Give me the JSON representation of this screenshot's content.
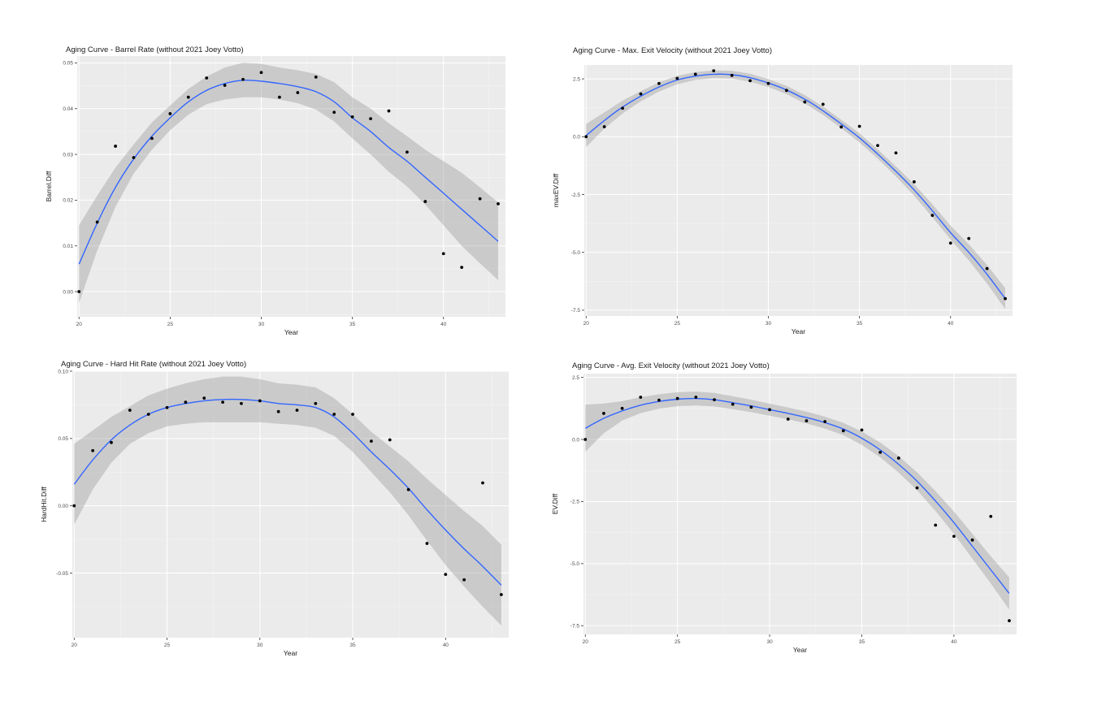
{
  "chart_data": [
    {
      "type": "scatter",
      "title": "Aging Curve - Barrel Rate (without 2021 Joey Votto)",
      "xlabel": "Year",
      "ylabel": "Barrel.Diff",
      "xlim": [
        19.9,
        43.4
      ],
      "ylim": [
        -0.0055,
        0.0515
      ],
      "xticks": [
        20,
        25,
        30,
        35,
        40
      ],
      "yticks": [
        0.0,
        0.01,
        0.02,
        0.03,
        0.04,
        0.05
      ],
      "ytick_labels": [
        "0.00",
        "0.01",
        "0.02",
        "0.03",
        "0.04",
        "0.05"
      ],
      "points": {
        "x": [
          20,
          21,
          22,
          23,
          24,
          25,
          26,
          27,
          28,
          29,
          30,
          31,
          32,
          33,
          34,
          35,
          36,
          37,
          38,
          39,
          40,
          41,
          42,
          43
        ],
        "y": [
          0.0,
          0.0152,
          0.0318,
          0.0293,
          0.0335,
          0.0389,
          0.0425,
          0.0467,
          0.0451,
          0.0464,
          0.0479,
          0.0425,
          0.0435,
          0.0469,
          0.0392,
          0.0382,
          0.0378,
          0.0395,
          0.0305,
          0.0197,
          0.0083,
          0.0053,
          0.0203,
          0.0192
        ]
      },
      "smooth": {
        "x": [
          20,
          21,
          22,
          23,
          24,
          25,
          26,
          27,
          28,
          29,
          30,
          31,
          32,
          33,
          34,
          35,
          36,
          37,
          38,
          39,
          40,
          41,
          42,
          43
        ],
        "y": [
          0.006,
          0.015,
          0.0228,
          0.029,
          0.034,
          0.038,
          0.0415,
          0.044,
          0.0455,
          0.0462,
          0.046,
          0.0455,
          0.0448,
          0.0437,
          0.0415,
          0.038,
          0.035,
          0.0315,
          0.0285,
          0.025,
          0.0215,
          0.018,
          0.0145,
          0.011
        ],
        "lower": [
          -0.0025,
          0.009,
          0.0185,
          0.0258,
          0.031,
          0.0353,
          0.0387,
          0.041,
          0.042,
          0.0425,
          0.0425,
          0.042,
          0.0412,
          0.0398,
          0.0372,
          0.0335,
          0.03,
          0.0262,
          0.023,
          0.019,
          0.0145,
          0.01,
          0.0062,
          0.0025
        ],
        "upper": [
          0.0145,
          0.021,
          0.0271,
          0.0322,
          0.037,
          0.0407,
          0.0443,
          0.047,
          0.049,
          0.05,
          0.0498,
          0.049,
          0.0484,
          0.0476,
          0.0458,
          0.0425,
          0.04,
          0.0368,
          0.034,
          0.031,
          0.0285,
          0.026,
          0.0228,
          0.0195
        ]
      }
    },
    {
      "type": "scatter",
      "title": "Aging Curve - Max. Exit Velocity (without 2021 Joey Votto)",
      "xlabel": "Year",
      "ylabel": "maxEV.Diff",
      "xlim": [
        19.9,
        43.4
      ],
      "ylim": [
        -7.75,
        3.1
      ],
      "xticks": [
        20,
        25,
        30,
        35,
        40
      ],
      "yticks": [
        -7.5,
        -5.0,
        -2.5,
        0.0,
        2.5
      ],
      "ytick_labels": [
        "-7.5",
        "-5.0",
        "-2.5",
        "0.0",
        "2.5"
      ],
      "points": {
        "x": [
          20,
          21,
          22,
          23,
          24,
          25,
          26,
          27,
          28,
          29,
          30,
          31,
          32,
          33,
          34,
          35,
          36,
          37,
          38,
          39,
          40,
          41,
          42,
          43
        ],
        "y": [
          0.0,
          0.43,
          1.23,
          1.85,
          2.3,
          2.52,
          2.7,
          2.85,
          2.65,
          2.42,
          2.3,
          2.0,
          1.5,
          1.4,
          0.42,
          0.45,
          -0.38,
          -0.7,
          -1.95,
          -3.4,
          -4.6,
          -4.4,
          -5.7,
          -7.0
        ]
      },
      "smooth": {
        "x": [
          20,
          21,
          22,
          23,
          24,
          25,
          26,
          27,
          28,
          29,
          30,
          31,
          32,
          33,
          34,
          35,
          36,
          37,
          38,
          39,
          40,
          41,
          42,
          43
        ],
        "y": [
          0.05,
          0.7,
          1.28,
          1.75,
          2.15,
          2.45,
          2.62,
          2.7,
          2.68,
          2.55,
          2.32,
          2.02,
          1.62,
          1.12,
          0.55,
          -0.05,
          -0.75,
          -1.5,
          -2.3,
          -3.2,
          -4.15,
          -5.0,
          -5.95,
          -7.0
        ],
        "lower": [
          -0.45,
          0.35,
          1.0,
          1.53,
          1.95,
          2.27,
          2.45,
          2.53,
          2.51,
          2.38,
          2.15,
          1.84,
          1.44,
          0.94,
          0.37,
          -0.25,
          -0.95,
          -1.72,
          -2.55,
          -3.48,
          -4.45,
          -5.35,
          -6.35,
          -7.45
        ],
        "upper": [
          0.55,
          1.05,
          1.56,
          1.97,
          2.35,
          2.63,
          2.79,
          2.87,
          2.85,
          2.72,
          2.49,
          2.2,
          1.8,
          1.3,
          0.73,
          0.15,
          -0.55,
          -1.28,
          -2.05,
          -2.92,
          -3.85,
          -4.65,
          -5.55,
          -6.55
        ]
      }
    },
    {
      "type": "scatter",
      "title": "Aging Curve - Hard Hit Rate (without 2021 Joey Votto)",
      "xlabel": "Year",
      "ylabel": "HardHit.Diff",
      "xlim": [
        19.9,
        43.4
      ],
      "ylim": [
        -0.098,
        0.1
      ],
      "xticks": [
        20,
        25,
        30,
        35,
        40
      ],
      "yticks": [
        -0.05,
        0.0,
        0.05,
        0.1
      ],
      "ytick_labels": [
        "-0.05",
        "0.00",
        "0.05",
        "0.10"
      ],
      "points": {
        "x": [
          20,
          21,
          22,
          23,
          24,
          25,
          26,
          27,
          28,
          29,
          30,
          31,
          32,
          33,
          34,
          35,
          36,
          37,
          38,
          39,
          40,
          41,
          42,
          43
        ],
        "y": [
          0.0,
          0.041,
          0.047,
          0.071,
          0.068,
          0.073,
          0.077,
          0.08,
          0.077,
          0.076,
          0.078,
          0.07,
          0.071,
          0.076,
          0.068,
          0.068,
          0.048,
          0.049,
          0.012,
          -0.028,
          -0.051,
          -0.055,
          0.017,
          -0.066
        ]
      },
      "smooth": {
        "x": [
          20,
          21,
          22,
          23,
          24,
          25,
          26,
          27,
          28,
          29,
          30,
          31,
          32,
          33,
          34,
          35,
          36,
          37,
          38,
          39,
          40,
          41,
          42,
          43
        ],
        "y": [
          0.016,
          0.034,
          0.049,
          0.06,
          0.068,
          0.073,
          0.076,
          0.078,
          0.079,
          0.079,
          0.078,
          0.076,
          0.075,
          0.073,
          0.066,
          0.054,
          0.04,
          0.027,
          0.013,
          -0.003,
          -0.018,
          -0.032,
          -0.045,
          -0.059
        ],
        "lower": [
          -0.014,
          0.012,
          0.032,
          0.046,
          0.054,
          0.059,
          0.061,
          0.062,
          0.062,
          0.062,
          0.062,
          0.061,
          0.06,
          0.058,
          0.052,
          0.04,
          0.025,
          0.01,
          -0.007,
          -0.026,
          -0.044,
          -0.06,
          -0.075,
          -0.089
        ],
        "upper": [
          0.046,
          0.056,
          0.066,
          0.074,
          0.082,
          0.087,
          0.091,
          0.094,
          0.096,
          0.096,
          0.094,
          0.091,
          0.09,
          0.088,
          0.08,
          0.068,
          0.055,
          0.044,
          0.033,
          0.02,
          0.008,
          -0.004,
          -0.015,
          -0.029
        ]
      }
    },
    {
      "type": "scatter",
      "title": "Aging Curve - Avg. Exit Velocity (without 2021 Joey Votto)",
      "xlabel": "Year",
      "ylabel": "EV.Diff",
      "xlim": [
        19.9,
        43.4
      ],
      "ylim": [
        -7.85,
        2.65
      ],
      "xticks": [
        20,
        25,
        30,
        35,
        40
      ],
      "yticks": [
        -7.5,
        -5.0,
        -2.5,
        0.0,
        2.5
      ],
      "ytick_labels": [
        "-7.5",
        "-5.0",
        "-2.5",
        "0.0",
        "2.5"
      ],
      "points": {
        "x": [
          20,
          21,
          22,
          23,
          24,
          25,
          26,
          27,
          28,
          29,
          30,
          31,
          32,
          33,
          34,
          35,
          36,
          37,
          38,
          39,
          40,
          41,
          42,
          43
        ],
        "y": [
          0.0,
          1.05,
          1.25,
          1.7,
          1.58,
          1.65,
          1.7,
          1.6,
          1.42,
          1.3,
          1.2,
          0.82,
          0.75,
          0.72,
          0.35,
          0.38,
          -0.52,
          -0.75,
          -1.95,
          -3.45,
          -3.9,
          -4.05,
          -3.1,
          -7.3
        ]
      },
      "smooth": {
        "x": [
          20,
          21,
          22,
          23,
          24,
          25,
          26,
          27,
          28,
          29,
          30,
          31,
          32,
          33,
          34,
          35,
          36,
          37,
          38,
          39,
          40,
          41,
          42,
          43
        ],
        "y": [
          0.45,
          0.85,
          1.15,
          1.38,
          1.53,
          1.62,
          1.65,
          1.6,
          1.48,
          1.35,
          1.2,
          1.05,
          0.88,
          0.68,
          0.42,
          0.05,
          -0.42,
          -1.0,
          -1.68,
          -2.48,
          -3.35,
          -4.3,
          -5.25,
          -6.2
        ],
        "lower": [
          -0.5,
          0.25,
          0.76,
          1.06,
          1.24,
          1.34,
          1.37,
          1.33,
          1.22,
          1.1,
          0.96,
          0.81,
          0.64,
          0.44,
          0.17,
          -0.22,
          -0.72,
          -1.33,
          -2.04,
          -2.88,
          -3.8,
          -4.8,
          -5.8,
          -6.85
        ],
        "upper": [
          1.4,
          1.45,
          1.54,
          1.7,
          1.82,
          1.9,
          1.93,
          1.87,
          1.74,
          1.6,
          1.44,
          1.29,
          1.12,
          0.92,
          0.67,
          0.32,
          -0.12,
          -0.67,
          -1.32,
          -2.08,
          -2.9,
          -3.8,
          -4.7,
          -5.55
        ]
      }
    }
  ]
}
